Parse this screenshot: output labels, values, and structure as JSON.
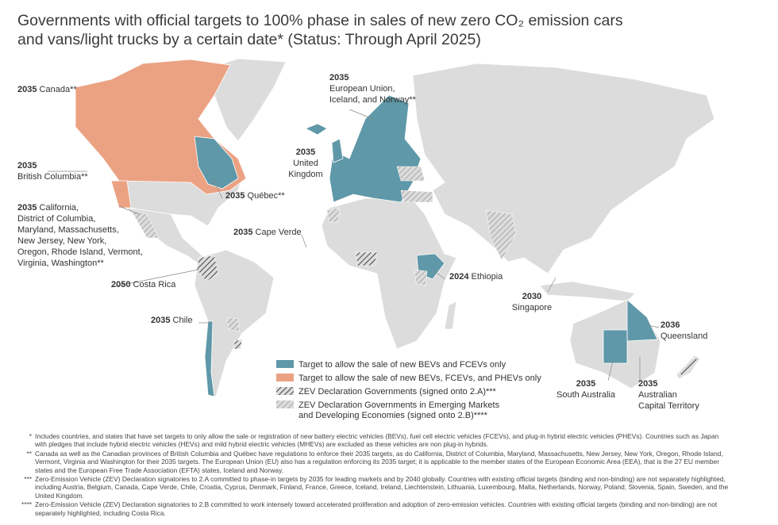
{
  "title": "Governments with official targets to 100% phase in sales of new zero CO₂ emission cars and vans/light trucks by a certain date* (Status: Through April 2025)",
  "annotations": [
    {
      "year": "2035",
      "label": [
        "Canada**"
      ]
    },
    {
      "year": "2035",
      "label": [
        "British Columbia**"
      ]
    },
    {
      "year": "2035",
      "label": [
        "California,",
        "District of Columbia,",
        "Maryland, Massachusetts,",
        "New Jersey, New York,",
        "Oregon, Rhode Island, Vermont,",
        "Virginia, Washington**"
      ]
    },
    {
      "year": "2050",
      "label": [
        "Costa Rica"
      ]
    },
    {
      "year": "2035",
      "label": [
        "Chile"
      ]
    },
    {
      "year": "2035",
      "label": [
        "Québec**"
      ]
    },
    {
      "year": "2035",
      "label": [
        "Cape Verde"
      ]
    },
    {
      "year": "2035",
      "label": [
        "European Union,",
        "Iceland, and Norway**"
      ]
    },
    {
      "year": "2035",
      "label": [
        "United",
        "Kingdom"
      ]
    },
    {
      "year": "2024",
      "label": [
        "Ethiopia"
      ]
    },
    {
      "year": "2030",
      "label": [
        "Singapore"
      ]
    },
    {
      "year": "2036",
      "label": [
        "Queensland"
      ]
    },
    {
      "year": "2035",
      "label": [
        "South Australia"
      ]
    },
    {
      "year": "2035",
      "label": [
        "Australian",
        "Capital Territory"
      ]
    }
  ],
  "legend": [
    {
      "label": [
        "Target to allow the sale of new BEVs and FCEVs only"
      ],
      "color": "#5f98a8"
    },
    {
      "label": [
        "Target to allow the sale of new BEVs, FCEVs, and PHEVs only"
      ],
      "color": "#eba283"
    },
    {
      "label": [
        "ZEV Declaration Governments (signed onto 2.A)***"
      ]
    },
    {
      "label": [
        "ZEV Declaration Governments in Emerging Markets",
        "and Developing Economies (signed onto 2.B)****"
      ]
    }
  ],
  "footnotes": [
    {
      "marker": "*",
      "text": "Includes countries, and states that have set targets to only allow the sale or registration of new battery electric vehicles (BEVs), fuel cell electric vehicles (FCEVs), and plug-in hybrid electric vehicles (PHEVs). Countries such as Japan with pledges that include hybrid electric vehicles (HEVs) and mild hybrid electric vehicles (MHEVs) are excluded as these vehicles are non plug-in hybrids."
    },
    {
      "marker": "**",
      "text": "Canada as well as the Canadian provinces of British Columbia and Québec have regulations to enforce their 2035 targets, as do California, District of Columbia, Maryland, Massachusetts, New Jersey, New York, Oregon, Rhode Island, Vermont, Virginia and Washington for their 2035 targets. The European Union (EU) also has a regulation enforcing its 2035 target; it is applicable to the member states of the European Economic Area (EEA), that is the 27 EU member states and the European Free Trade Association (EFTA) states, Iceland and Norway."
    },
    {
      "marker": "***",
      "text": "Zero-Emission Vehicle (ZEV) Declaration signatories to 2.A committed to phase-in targets by 2035 for leading markets and by 2040 globally. Countries with existing official targets (binding and non-binding) are not separately highlighted, including Austria, Belgium, Canada, Cape Verde, Chile, Croatia, Cyprus, Denmark, Finland, France, Greece, Iceland, Ireland, Liechtenstein, Lithuania, Luxembourg, Malta, Netherlands, Norway, Poland, Slovenia, Spain, Sweden, and the United Kingdom."
    },
    {
      "marker": "****",
      "text": "Zero-Emission Vehicle (ZEV) Declaration signatories to 2.B committed to work intensely toward accelerated proliferation and adoption of zero-emission vehicles. Countries with existing official targets (binding and non-binding) are not separately highlighted, including Costa Rica."
    }
  ]
}
